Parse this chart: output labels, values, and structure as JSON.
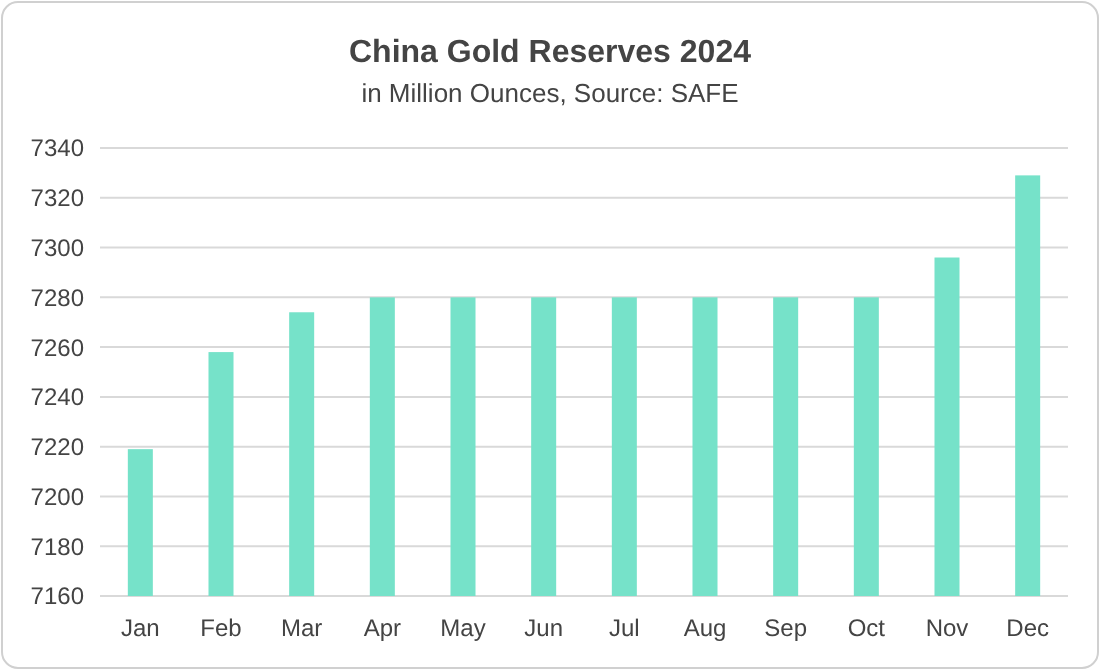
{
  "chart_data": {
    "type": "bar",
    "title": "China Gold Reserves 2024",
    "subtitle": "in Million Ounces, Source: SAFE",
    "categories": [
      "Jan",
      "Feb",
      "Mar",
      "Apr",
      "May",
      "Jun",
      "Jul",
      "Aug",
      "Sep",
      "Oct",
      "Nov",
      "Dec"
    ],
    "values": [
      7219,
      7258,
      7274,
      7280,
      7280,
      7280,
      7280,
      7280,
      7280,
      7280,
      7296,
      7329
    ],
    "color": "#76e2c9",
    "ylim": [
      7160,
      7340
    ],
    "yticks": [
      7160,
      7180,
      7200,
      7220,
      7240,
      7260,
      7280,
      7300,
      7320,
      7340
    ],
    "grid": "y"
  }
}
